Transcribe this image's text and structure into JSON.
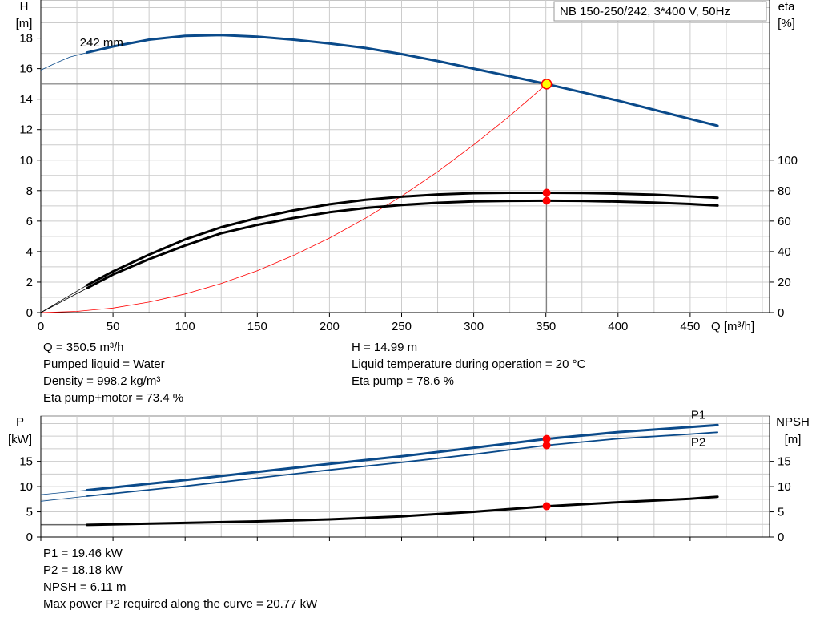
{
  "chart_data": [
    {
      "type": "line",
      "title": "NB 150-250/242, 3*400 V, 50Hz",
      "xlabel": "Q [m³/h]",
      "ylabel_left": [
        "H",
        "[m]"
      ],
      "ylabel_right": [
        "eta",
        "[%]"
      ],
      "xlim": [
        0,
        505
      ],
      "ylim_left": [
        0,
        20.5
      ],
      "ylim_right": [
        0,
        100
      ],
      "grid": true,
      "x_ticks": [
        "0",
        "50",
        "100",
        "150",
        "200",
        "250",
        "300",
        "350",
        "400",
        "450"
      ],
      "y_ticks_left": [
        "0",
        "2",
        "4",
        "6",
        "8",
        "10",
        "12",
        "14",
        "16",
        "18"
      ],
      "y_ticks_right": [
        "0",
        "20",
        "40",
        "60",
        "80",
        "100"
      ],
      "curve_label": "242 mm",
      "series": [
        {
          "key": "H",
          "axis": "left",
          "color": "#0a4a8a",
          "x": [
            0,
            10,
            20,
            32,
            50,
            75,
            100,
            125,
            150,
            175,
            200,
            225,
            250,
            275,
            300,
            325,
            350.5,
            375,
            400,
            425,
            450,
            469
          ],
          "y": [
            15.9,
            16.35,
            16.75,
            17.05,
            17.45,
            17.9,
            18.15,
            18.2,
            18.1,
            17.9,
            17.65,
            17.35,
            16.95,
            16.5,
            16.0,
            15.5,
            14.99,
            14.45,
            13.9,
            13.3,
            12.7,
            12.25
          ]
        },
        {
          "key": "eta-pump",
          "axis": "right",
          "color": "#000000",
          "x": [
            0,
            32,
            50,
            75,
            100,
            125,
            150,
            175,
            200,
            225,
            250,
            275,
            300,
            325,
            350.5,
            375,
            400,
            425,
            450,
            469
          ],
          "y": [
            0,
            18,
            27,
            38,
            48,
            56,
            62,
            67,
            71,
            74,
            76,
            77.5,
            78.3,
            78.6,
            78.6,
            78.5,
            78,
            77.3,
            76.2,
            75.3
          ]
        },
        {
          "key": "eta-pump-motor",
          "axis": "right",
          "color": "#000000",
          "x": [
            0,
            32,
            50,
            75,
            100,
            125,
            150,
            175,
            200,
            225,
            250,
            275,
            300,
            325,
            350.5,
            375,
            400,
            425,
            450,
            469
          ],
          "y": [
            0,
            16,
            25,
            35,
            44,
            52,
            57.5,
            62,
            65.8,
            68.6,
            70.6,
            72,
            72.9,
            73.3,
            73.4,
            73.3,
            72.8,
            72.1,
            71.2,
            70.2
          ]
        },
        {
          "key": "system-curve",
          "axis": "left",
          "color": "#ff0000",
          "x": [
            0,
            25,
            50,
            75,
            100,
            125,
            150,
            175,
            200,
            225,
            250,
            275,
            300,
            325,
            350.5
          ],
          "y": [
            0,
            0.08,
            0.3,
            0.69,
            1.22,
            1.91,
            2.75,
            3.74,
            4.89,
            6.19,
            7.64,
            9.24,
            11.0,
            12.9,
            14.99
          ]
        }
      ],
      "duty_point": {
        "x": 350.5,
        "h": 14.99,
        "eta_pump": 78.6,
        "eta_pump_motor": 73.4
      }
    },
    {
      "type": "line",
      "xlim": [
        0,
        505
      ],
      "ylabel_left": [
        "P",
        "[kW]"
      ],
      "ylabel_right": [
        "NPSH",
        "[m]"
      ],
      "ylim_left": [
        0,
        24
      ],
      "ylim_right": [
        0,
        24
      ],
      "grid": true,
      "y_ticks_left": [
        "0",
        "5",
        "10",
        "15"
      ],
      "y_ticks_right": [
        "0",
        "5",
        "10",
        "15"
      ],
      "series": [
        {
          "key": "P1",
          "name": "P1",
          "axis": "left",
          "color": "#0a4a8a",
          "x": [
            0,
            32,
            100,
            150,
            200,
            250,
            300,
            350.5,
            400,
            450,
            469
          ],
          "y": [
            8.4,
            9.3,
            11.3,
            12.9,
            14.5,
            16.0,
            17.7,
            19.46,
            20.8,
            21.8,
            22.2
          ]
        },
        {
          "key": "P2",
          "name": "P2",
          "axis": "left",
          "color": "#0a4a8a",
          "x": [
            0,
            32,
            100,
            150,
            200,
            250,
            300,
            350.5,
            400,
            450,
            469
          ],
          "y": [
            7.1,
            8.1,
            10.1,
            11.7,
            13.3,
            14.8,
            16.4,
            18.18,
            19.5,
            20.4,
            20.77
          ]
        },
        {
          "key": "NPSH",
          "axis": "right",
          "color": "#000000",
          "x": [
            0,
            32,
            100,
            150,
            200,
            250,
            300,
            350.5,
            400,
            450,
            469
          ],
          "y": [
            2.4,
            2.4,
            2.8,
            3.1,
            3.5,
            4.1,
            5.0,
            6.11,
            6.9,
            7.6,
            8.0
          ]
        }
      ],
      "duty_point": {
        "x": 350.5,
        "p1": 19.46,
        "p2": 18.18,
        "npsh": 6.11
      }
    }
  ],
  "upper_info": {
    "left": [
      "Q = 350.5 m³/h",
      "Pumped liquid = Water",
      "Density = 998.2 kg/m³",
      "Eta pump+motor = 73.4 %"
    ],
    "right": [
      "H = 14.99 m",
      "Liquid temperature during operation = 20 °C",
      "Eta pump = 78.6 %"
    ]
  },
  "lower_info": [
    "P1 = 19.46 kW",
    "P2 = 18.18 kW",
    "NPSH = 6.11 m",
    "Max power P2 required along the curve = 20.77 kW"
  ],
  "colors": {
    "curve_blue": "#0a4a8a",
    "marker_red": "#ff0000",
    "marker_yellow": "#ffff00",
    "grid": "#cccccc"
  }
}
